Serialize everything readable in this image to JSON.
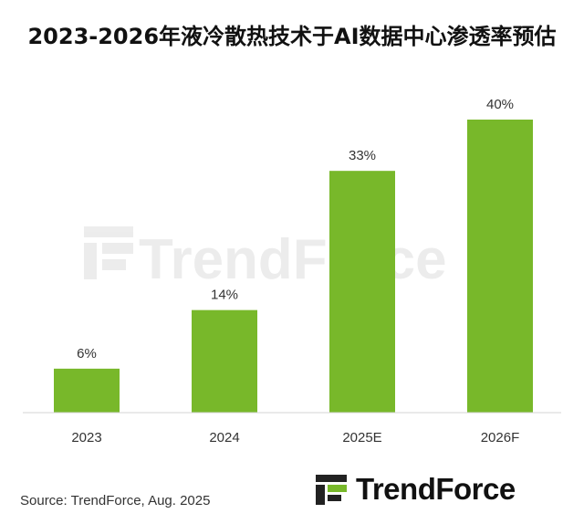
{
  "chart_data": {
    "type": "bar",
    "title": "2023-2026年液冷散热技术于AI数据中心渗透率预估",
    "categories": [
      "2023",
      "2024",
      "2025E",
      "2026F"
    ],
    "values": [
      6,
      14,
      33,
      40
    ],
    "data_labels": [
      "6%",
      "14%",
      "33%",
      "40%"
    ],
    "ylim": [
      0,
      40
    ],
    "grid": false,
    "bar_color": "#78b82a",
    "watermark": "TrendForce"
  },
  "source": "Source: TrendForce, Aug. 2025",
  "logo": {
    "text": "TrendForce",
    "icon": "trendforce-logo-icon",
    "accent": "#78b82a"
  }
}
